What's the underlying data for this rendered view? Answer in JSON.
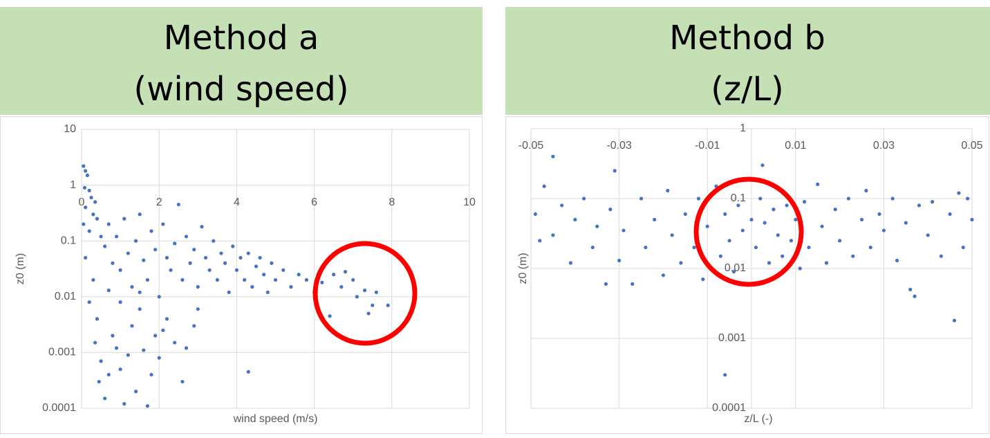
{
  "chart_data": [
    {
      "type": "scatter",
      "title": [
        "Method a",
        "(wind speed)"
      ],
      "xlabel": "wind speed (m/s)",
      "ylabel": "z0 (m)",
      "color": "#4472c4",
      "yscale": "log",
      "grid": true,
      "x_axis_crosses": 1,
      "xlim": [
        0,
        10
      ],
      "xticks": [
        0,
        2,
        4,
        6,
        8,
        10
      ],
      "ylim": [
        0.0001,
        10
      ],
      "yticks": [
        10,
        1,
        0.1,
        0.01,
        0.001,
        0.0001
      ],
      "x": [
        0.05,
        0.1,
        0.15,
        0.08,
        0.2,
        0.25,
        0.1,
        0.3,
        0.05,
        0.2,
        0.35,
        0.4,
        0.5,
        0.1,
        0.3,
        0.2,
        0.4,
        0.35,
        0.5,
        0.45,
        0.6,
        0.7,
        0.8,
        0.9,
        1.0,
        1.1,
        1.2,
        1.3,
        1.4,
        1.5,
        1.6,
        1.7,
        1.8,
        1.9,
        2.0,
        2.2,
        2.4,
        2.6,
        2.7,
        2.9,
        3.0,
        0.6,
        0.7,
        0.8,
        0.9,
        1.0,
        1.1,
        1.2,
        1.3,
        1.4,
        1.5,
        1.6,
        1.7,
        1.8,
        1.9,
        2.0,
        2.1,
        2.2,
        2.3,
        2.4,
        2.5,
        2.6,
        2.7,
        2.8,
        2.9,
        3.0,
        3.1,
        3.2,
        3.3,
        3.4,
        3.5,
        3.6,
        3.7,
        3.8,
        3.9,
        4.0,
        4.1,
        4.2,
        4.3,
        4.4,
        4.5,
        4.6,
        4.7,
        4.8,
        4.9,
        5.0,
        5.2,
        5.4,
        5.6,
        5.8,
        6.0,
        6.2,
        6.5,
        6.7,
        6.8,
        7.0,
        7.1,
        7.3,
        7.5,
        7.6,
        7.9,
        6.4,
        7.4,
        4.3,
        1.0,
        1.5,
        2.1,
        0.7
      ],
      "values": [
        2.2,
        1.8,
        1.5,
        0.9,
        0.8,
        0.6,
        0.4,
        0.3,
        0.2,
        0.15,
        0.5,
        0.25,
        0.12,
        0.05,
        0.02,
        0.008,
        0.004,
        0.0015,
        0.0007,
        0.0003,
        0.00015,
        0.0004,
        0.002,
        0.0012,
        0.0005,
        0.00012,
        0.0009,
        0.003,
        0.0002,
        0.006,
        0.0011,
        0.00011,
        0.0004,
        0.002,
        0.0008,
        0.004,
        0.0015,
        0.0003,
        0.0012,
        0.003,
        0.006,
        0.08,
        0.2,
        0.04,
        0.12,
        0.03,
        0.25,
        0.06,
        0.015,
        0.1,
        0.3,
        0.045,
        0.02,
        0.15,
        0.07,
        0.01,
        0.2,
        0.05,
        0.03,
        0.09,
        0.45,
        0.02,
        0.12,
        0.04,
        0.07,
        0.015,
        0.18,
        0.05,
        0.03,
        0.1,
        0.02,
        0.06,
        0.04,
        0.012,
        0.08,
        0.03,
        0.05,
        0.02,
        0.06,
        0.015,
        0.035,
        0.05,
        0.025,
        0.012,
        0.04,
        0.02,
        0.03,
        0.015,
        0.025,
        0.02,
        0.012,
        0.018,
        0.025,
        0.015,
        0.028,
        0.02,
        0.01,
        0.013,
        0.007,
        0.012,
        0.007,
        0.0045,
        0.005,
        0.00045,
        0.008,
        0.012,
        0.0025,
        0.013
      ]
    },
    {
      "type": "scatter",
      "title": [
        "Method b",
        "(z/L)"
      ],
      "xlabel": "z/L (-)",
      "ylabel": "z0 (m)",
      "color": "#4472c4",
      "yscale": "log",
      "grid": true,
      "x_axis_crosses": 1,
      "y_axis_crosses": 0,
      "xlim": [
        -0.05,
        0.05
      ],
      "xticks": [
        -0.05,
        -0.03,
        -0.01,
        0.01,
        0.03,
        0.05
      ],
      "ylim": [
        0.0001,
        1
      ],
      "yticks": [
        1,
        0.1,
        0.01,
        0.001,
        0.0001
      ],
      "x": [
        -0.049,
        -0.048,
        -0.047,
        -0.045,
        -0.043,
        -0.045,
        -0.041,
        -0.04,
        -0.038,
        -0.036,
        -0.035,
        -0.033,
        -0.032,
        -0.03,
        -0.031,
        -0.029,
        -0.027,
        -0.025,
        -0.024,
        -0.022,
        -0.02,
        -0.019,
        -0.018,
        -0.016,
        -0.015,
        -0.013,
        -0.012,
        -0.011,
        -0.01,
        -0.008,
        -0.007,
        -0.006,
        -0.005,
        -0.004,
        -0.003,
        -0.002,
        -0.001,
        0.0,
        -0.006,
        0.001,
        0.002,
        0.0025,
        0.003,
        0.004,
        0.005,
        0.006,
        0.007,
        0.008,
        0.009,
        0.01,
        0.011,
        0.012,
        0.013,
        0.015,
        0.016,
        0.017,
        0.019,
        0.02,
        0.022,
        0.023,
        0.025,
        0.026,
        0.027,
        0.029,
        0.03,
        0.032,
        0.033,
        0.035,
        0.036,
        0.037,
        0.038,
        0.04,
        0.041,
        0.043,
        0.045,
        0.046,
        0.047,
        0.048,
        0.049,
        0.05
      ],
      "values": [
        0.06,
        0.025,
        0.15,
        0.03,
        0.08,
        0.4,
        0.012,
        0.05,
        0.1,
        0.02,
        0.04,
        0.006,
        0.07,
        0.013,
        0.25,
        0.035,
        0.006,
        0.1,
        0.02,
        0.05,
        0.008,
        0.13,
        0.03,
        0.012,
        0.06,
        0.02,
        0.1,
        0.007,
        0.04,
        0.15,
        0.015,
        0.06,
        0.025,
        0.009,
        0.08,
        0.035,
        0.006,
        0.05,
        0.0003,
        0.02,
        0.1,
        0.3,
        0.045,
        0.012,
        0.07,
        0.03,
        0.015,
        0.08,
        0.025,
        0.05,
        0.01,
        0.09,
        0.02,
        0.16,
        0.04,
        0.012,
        0.07,
        0.025,
        0.1,
        0.015,
        0.05,
        0.13,
        0.02,
        0.06,
        0.035,
        0.1,
        0.013,
        0.045,
        0.005,
        0.004,
        0.08,
        0.03,
        0.09,
        0.015,
        0.06,
        0.0018,
        0.12,
        0.02,
        0.1,
        0.05
      ]
    }
  ]
}
